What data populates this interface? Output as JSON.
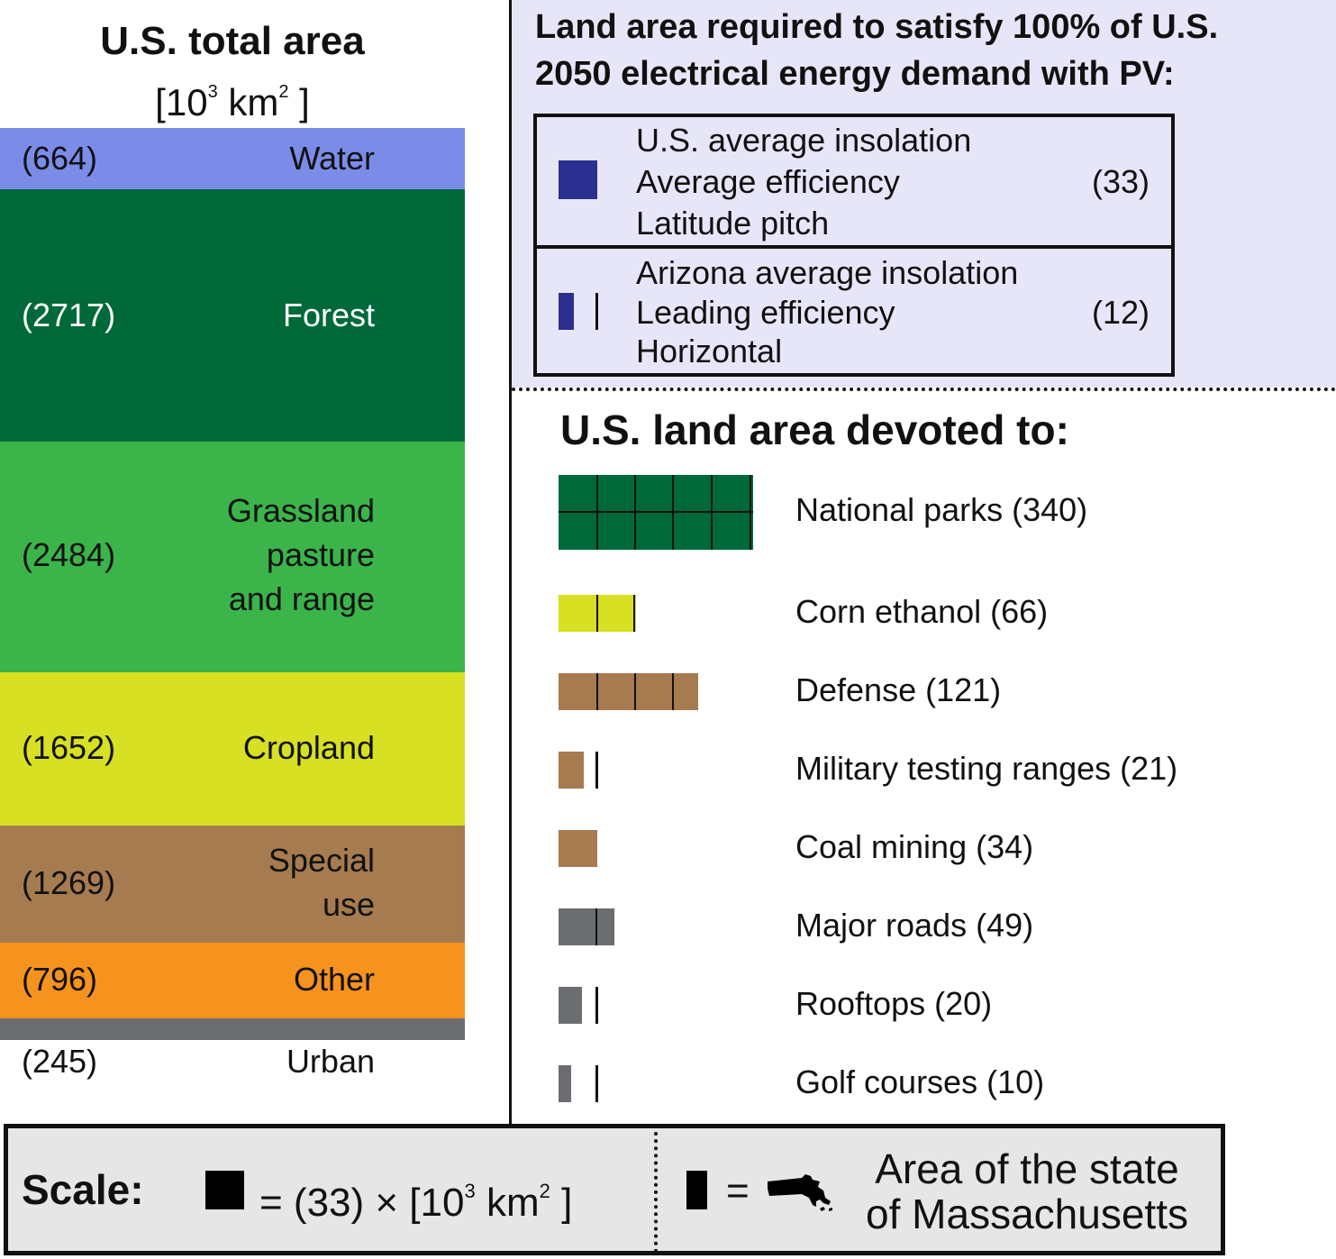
{
  "us_total": {
    "title": "U.S. total area",
    "unit_open": "[10",
    "unit_exp1": "3",
    "unit_mid": " km",
    "unit_exp2": "2",
    "unit_close": " ]",
    "categories": [
      {
        "name": "Water",
        "value": "(664)",
        "area": 664,
        "color": "#7b8ce8",
        "text_color": "#111111"
      },
      {
        "name": "Forest",
        "value": "(2717)",
        "area": 2717,
        "color": "#00693a",
        "text_color": "#ffffff"
      },
      {
        "name": "Grassland\npasture\nand range",
        "value": "(2484)",
        "area": 2484,
        "color": "#3bb44a",
        "text_color": "#111111"
      },
      {
        "name": "Cropland",
        "value": "(1652)",
        "area": 1652,
        "color": "#d7e022",
        "text_color": "#111111"
      },
      {
        "name": "Special\nuse",
        "value": "(1269)",
        "area": 1269,
        "color": "#a67b4f",
        "text_color": "#111111"
      },
      {
        "name": "Other",
        "value": "(796)",
        "area": 796,
        "color": "#f6921e",
        "text_color": "#111111"
      },
      {
        "name": "Urban",
        "value": "(245)",
        "area": 245,
        "color": "#6c6d70",
        "text_color": "#111111"
      }
    ]
  },
  "pv": {
    "title_line1": "Land area required to satisfy 100% of U.S.",
    "title_line2": "2050 electrical energy demand with PV:",
    "scenarios": [
      {
        "lines": [
          "U.S. average insolation",
          "Average efficiency",
          "Latitude pitch"
        ],
        "value": "(33)",
        "area": 33
      },
      {
        "lines": [
          "Arizona average insolation",
          "Leading efficiency",
          "Horizontal"
        ],
        "value": "(12)",
        "area": 12
      }
    ],
    "swatch_color": "#2b2f8f"
  },
  "devoted": {
    "title": "U.S. land area devoted to:",
    "items": [
      {
        "label": "National parks (340)",
        "area": 340,
        "color": "#00693a"
      },
      {
        "label": "Corn ethanol (66)",
        "area": 66,
        "color": "#d7e022"
      },
      {
        "label": "Defense (121)",
        "area": 121,
        "color": "#a67b4f"
      },
      {
        "label": "Military testing ranges (21)",
        "area": 21,
        "color": "#a67b4f"
      },
      {
        "label": "Coal mining (34)",
        "area": 34,
        "color": "#a67b4f"
      },
      {
        "label": "Major roads (49)",
        "area": 49,
        "color": "#6c6d70"
      },
      {
        "label": "Rooftops (20)",
        "area": 20,
        "color": "#6c6d70"
      },
      {
        "label": "Golf courses (10)",
        "area": 10,
        "color": "#6c6d70"
      }
    ]
  },
  "scale": {
    "label": "Scale:",
    "eq_text": "= (33) × [10",
    "eq_exp1": "3",
    "eq_mid": " km",
    "eq_exp2": "2",
    "eq_close": " ]",
    "eq2_text": "=",
    "ma_text": "Area of the state\nof Massachusetts"
  }
}
